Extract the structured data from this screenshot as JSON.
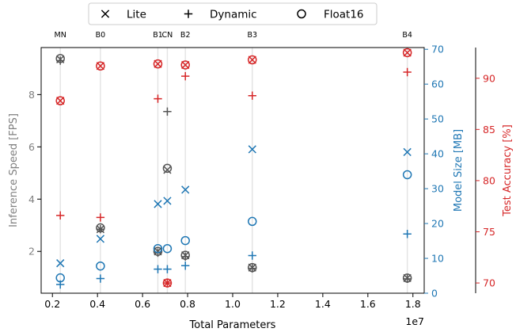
{
  "chart_data": {
    "type": "scatter",
    "legend": {
      "placement": "top-center",
      "entries": [
        {
          "label": "Lite",
          "marker": "x"
        },
        {
          "label": "Dynamic",
          "marker": "+"
        },
        {
          "label": "Float16",
          "marker": "o"
        }
      ]
    },
    "x_axis": {
      "label": "Total Parameters",
      "offset_text": "1e7",
      "range": [
        0.15,
        1.85
      ],
      "ticks": [
        0.2,
        0.4,
        0.6,
        0.8,
        1.0,
        1.2,
        1.4,
        1.6,
        1.8
      ],
      "tick_labels": [
        "0.2",
        "0.4",
        "0.6",
        "0.8",
        "1.0",
        "1.2",
        "1.4",
        "1.6",
        "1.8"
      ]
    },
    "models": [
      {
        "name": "MN",
        "x": 0.235
      },
      {
        "name": "B0",
        "x": 0.413
      },
      {
        "name": "B1",
        "x": 0.668
      },
      {
        "name": "CN",
        "x": 0.71
      },
      {
        "name": "B2",
        "x": 0.79
      },
      {
        "name": "B3",
        "x": 1.087
      },
      {
        "name": "B4",
        "x": 1.775
      }
    ],
    "axes": {
      "speed": {
        "label": "Inference Speed [FPS]",
        "range": [
          0.4,
          9.8
        ],
        "ticks": [
          2,
          4,
          6,
          8
        ],
        "tick_labels": [
          "2",
          "4",
          "6",
          "8"
        ],
        "color": "#808080"
      },
      "size": {
        "label": "Model Size [MB]",
        "range": [
          0,
          70.5
        ],
        "ticks": [
          0,
          10,
          20,
          30,
          40,
          50,
          60,
          70
        ],
        "tick_labels": [
          "0",
          "10",
          "20",
          "30",
          "40",
          "50",
          "60",
          "70"
        ],
        "color": "#1f77b4"
      },
      "accuracy": {
        "label": "Test Accuracy [%]",
        "range": [
          69.0,
          93.0
        ],
        "ticks": [
          70,
          75,
          80,
          85,
          90
        ],
        "tick_labels": [
          "70",
          "75",
          "80",
          "85",
          "90"
        ],
        "color": "#d62728"
      }
    },
    "series": [
      {
        "metric": "speed",
        "variant": "Lite",
        "marker": "x",
        "color": "#555555",
        "values": [
          9.35,
          2.85,
          2.0,
          5.12,
          1.85,
          1.38,
          0.98
        ]
      },
      {
        "metric": "speed",
        "variant": "Dynamic",
        "marker": "+",
        "color": "#555555",
        "values": [
          9.3,
          2.85,
          1.95,
          7.35,
          1.8,
          1.35,
          0.95
        ]
      },
      {
        "metric": "speed",
        "variant": "Float16",
        "marker": "o",
        "color": "#555555",
        "values": [
          9.38,
          2.9,
          2.0,
          5.18,
          1.85,
          1.38,
          0.98
        ]
      },
      {
        "metric": "size",
        "variant": "Lite",
        "marker": "x",
        "color": "#1f77b4",
        "values": [
          8.6,
          15.6,
          25.6,
          26.5,
          29.7,
          41.3,
          40.5
        ]
      },
      {
        "metric": "size",
        "variant": "Dynamic",
        "marker": "+",
        "color": "#1f77b4",
        "values": [
          2.5,
          4.2,
          6.9,
          6.9,
          7.9,
          10.8,
          17.0
        ]
      },
      {
        "metric": "size",
        "variant": "Float16",
        "marker": "o",
        "color": "#1f77b4",
        "values": [
          4.4,
          7.8,
          12.8,
          12.8,
          15.1,
          20.6,
          34.0
        ]
      },
      {
        "metric": "accuracy",
        "variant": "Lite",
        "marker": "x",
        "color": "#d62728",
        "values": [
          87.8,
          91.2,
          91.4,
          70.0,
          91.3,
          91.8,
          92.5
        ]
      },
      {
        "metric": "accuracy",
        "variant": "Dynamic",
        "marker": "+",
        "color": "#d62728",
        "values": [
          76.6,
          76.4,
          88.0,
          70.0,
          90.2,
          88.3,
          90.6
        ]
      },
      {
        "metric": "accuracy",
        "variant": "Float16",
        "marker": "o",
        "color": "#d62728",
        "values": [
          87.8,
          91.2,
          91.4,
          70.0,
          91.3,
          91.8,
          92.5
        ]
      }
    ]
  }
}
